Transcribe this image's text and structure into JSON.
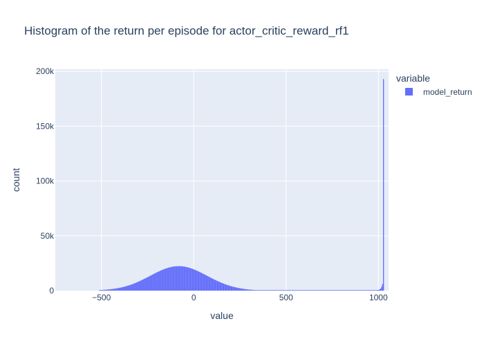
{
  "chart_data": {
    "type": "bar",
    "subtype": "histogram",
    "title": "Histogram of the return per episode for actor_critic_reward_rf1",
    "xlabel": "value",
    "ylabel": "count",
    "xlim": [
      -750,
      1055
    ],
    "ylim": [
      0,
      202000
    ],
    "x_tick_values": [
      -500,
      0,
      500,
      1000
    ],
    "x_tick_labels": [
      "−500",
      "0",
      "500",
      "1000"
    ],
    "y_tick_values": [
      0,
      50000,
      100000,
      150000,
      200000
    ],
    "y_tick_labels": [
      "0",
      "50k",
      "100k",
      "150k",
      "200k"
    ],
    "grid": true,
    "legend": {
      "title": "variable",
      "position": "top-right"
    },
    "colors": {
      "bar": "#636efa",
      "plot_bg": "#e5ecf6",
      "grid": "#ffffff",
      "text": "#2a3f5f"
    },
    "bin_width": 5,
    "series": [
      {
        "name": "model_return",
        "bins_x": [
          -515,
          -510,
          -505,
          -500,
          -495,
          -490,
          -485,
          -480,
          -475,
          -470,
          -465,
          -460,
          -455,
          -450,
          -445,
          -440,
          -435,
          -430,
          -425,
          -420,
          -415,
          -410,
          -405,
          -400,
          -395,
          -390,
          -385,
          -380,
          -375,
          -370,
          -365,
          -360,
          -355,
          -350,
          -345,
          -340,
          -335,
          -330,
          -325,
          -320,
          -315,
          -310,
          -305,
          -300,
          -295,
          -290,
          -285,
          -280,
          -275,
          -270,
          -265,
          -260,
          -255,
          -250,
          -245,
          -240,
          -235,
          -230,
          -225,
          -220,
          -215,
          -210,
          -205,
          -200,
          -195,
          -190,
          -185,
          -180,
          -175,
          -170,
          -165,
          -160,
          -155,
          -150,
          -145,
          -140,
          -135,
          -130,
          -125,
          -120,
          -115,
          -110,
          -105,
          -100,
          -95,
          -90,
          -85,
          -80,
          -75,
          -70,
          -65,
          -60,
          -55,
          -50,
          -45,
          -40,
          -35,
          -30,
          -25,
          -20,
          -15,
          -10,
          -5,
          0,
          5,
          10,
          15,
          20,
          25,
          30,
          35,
          40,
          45,
          50,
          55,
          60,
          65,
          70,
          75,
          80,
          85,
          90,
          95,
          100,
          105,
          110,
          115,
          120,
          125,
          130,
          135,
          140,
          145,
          150,
          155,
          160,
          165,
          170,
          175,
          180,
          185,
          190,
          195,
          200,
          205,
          210,
          215,
          220,
          225,
          230,
          235,
          240,
          245,
          250,
          255,
          260,
          265,
          270,
          275,
          280,
          285,
          290,
          295,
          300,
          305,
          310,
          315,
          320,
          325,
          330,
          335,
          340,
          345,
          350,
          355,
          360,
          365,
          370,
          375,
          380,
          385,
          390,
          395,
          400,
          405,
          410,
          415,
          420,
          425,
          430,
          435,
          440,
          445,
          450,
          455,
          460,
          465,
          470,
          475,
          480,
          485,
          490,
          495,
          500,
          505,
          510,
          515,
          520,
          525,
          530,
          535,
          540,
          545,
          550,
          555,
          560,
          565,
          570,
          575,
          580,
          585,
          590,
          595,
          600,
          605,
          610,
          615,
          620,
          625,
          630,
          635,
          640,
          645,
          650,
          655,
          660,
          665,
          670,
          675,
          680,
          685,
          690,
          695,
          700,
          705,
          710,
          715,
          720,
          725,
          730,
          735,
          740,
          745,
          750,
          755,
          760,
          765,
          770,
          775,
          780,
          785,
          790,
          795,
          800,
          805,
          810,
          815,
          820,
          825,
          830,
          835,
          840,
          845,
          850,
          855,
          860,
          865,
          870,
          875,
          880,
          885,
          890,
          895,
          900,
          905,
          910,
          915,
          920,
          925,
          930,
          935,
          940,
          945,
          950,
          955,
          960,
          965,
          970,
          975,
          980,
          985,
          990,
          995,
          1000,
          1005,
          1010,
          1015,
          1020,
          1025,
          1030,
          1035,
          1040,
          1045,
          1050
        ],
        "counts": [
          500,
          540,
          590,
          640,
          690,
          750,
          810,
          870,
          940,
          1010,
          1090,
          1170,
          1260,
          1360,
          1460,
          1570,
          1690,
          1810,
          1940,
          2080,
          2230,
          2380,
          2550,
          2720,
          2910,
          3100,
          3300,
          3520,
          3740,
          3970,
          4220,
          4470,
          4740,
          5010,
          5300,
          5600,
          5910,
          6230,
          6560,
          6900,
          7260,
          7620,
          7990,
          8370,
          8750,
          9150,
          9550,
          9960,
          10380,
          10800,
          11220,
          11650,
          12090,
          12520,
          12960,
          13400,
          13840,
          14280,
          14720,
          15150,
          15590,
          16010,
          16440,
          16850,
          17260,
          17650,
          18040,
          18420,
          18790,
          19140,
          19480,
          19800,
          20110,
          20400,
          20670,
          20930,
          21160,
          21380,
          21570,
          21750,
          21900,
          22030,
          22140,
          22230,
          22290,
          22330,
          22340,
          22330,
          22300,
          22250,
          22170,
          22070,
          21950,
          21800,
          21640,
          21450,
          21240,
          21010,
          20760,
          20490,
          20200,
          19900,
          19580,
          19240,
          18900,
          18530,
          18160,
          17770,
          17370,
          16970,
          16550,
          16130,
          15700,
          15270,
          14830,
          14390,
          13950,
          13510,
          13060,
          12620,
          12190,
          11750,
          11320,
          10890,
          10470,
          10050,
          9640,
          9240,
          8850,
          8460,
          8080,
          7710,
          7350,
          7000,
          6660,
          6330,
          6010,
          5700,
          5400,
          5110,
          4830,
          4570,
          4310,
          4060,
          3820,
          3590,
          3370,
          3170,
          2970,
          2770,
          2590,
          2420,
          2250,
          2100,
          1950,
          1810,
          1680,
          1550,
          1430,
          1320,
          1220,
          1120,
          1030,
          950,
          870,
          790,
          720,
          660,
          600,
          550,
          500,
          500,
          500,
          500,
          500,
          500,
          500,
          500,
          500,
          500,
          500,
          500,
          500,
          500,
          500,
          500,
          500,
          500,
          500,
          500,
          500,
          500,
          500,
          500,
          500,
          500,
          500,
          500,
          500,
          500,
          500,
          500,
          500,
          500,
          500,
          500,
          500,
          500,
          500,
          500,
          500,
          500,
          500,
          500,
          500,
          500,
          500,
          500,
          500,
          500,
          500,
          500,
          500,
          500,
          500,
          500,
          500,
          500,
          500,
          500,
          500,
          500,
          500,
          500,
          500,
          500,
          500,
          500,
          500,
          500,
          500,
          500,
          500,
          500,
          500,
          500,
          500,
          500,
          500,
          500,
          500,
          500,
          500,
          500,
          500,
          500,
          500,
          500,
          500,
          500,
          500,
          500,
          500,
          500,
          500,
          500,
          500,
          500,
          500,
          500,
          500,
          500,
          500,
          500,
          500,
          500,
          500,
          500,
          500,
          500,
          500,
          500,
          500,
          500,
          500,
          500,
          500,
          500,
          500,
          500,
          500,
          500,
          500,
          500,
          500,
          500,
          500,
          500,
          500,
          500,
          500,
          500,
          600,
          800,
          1200,
          2000,
          3600,
          6000,
          193000
        ]
      }
    ]
  }
}
